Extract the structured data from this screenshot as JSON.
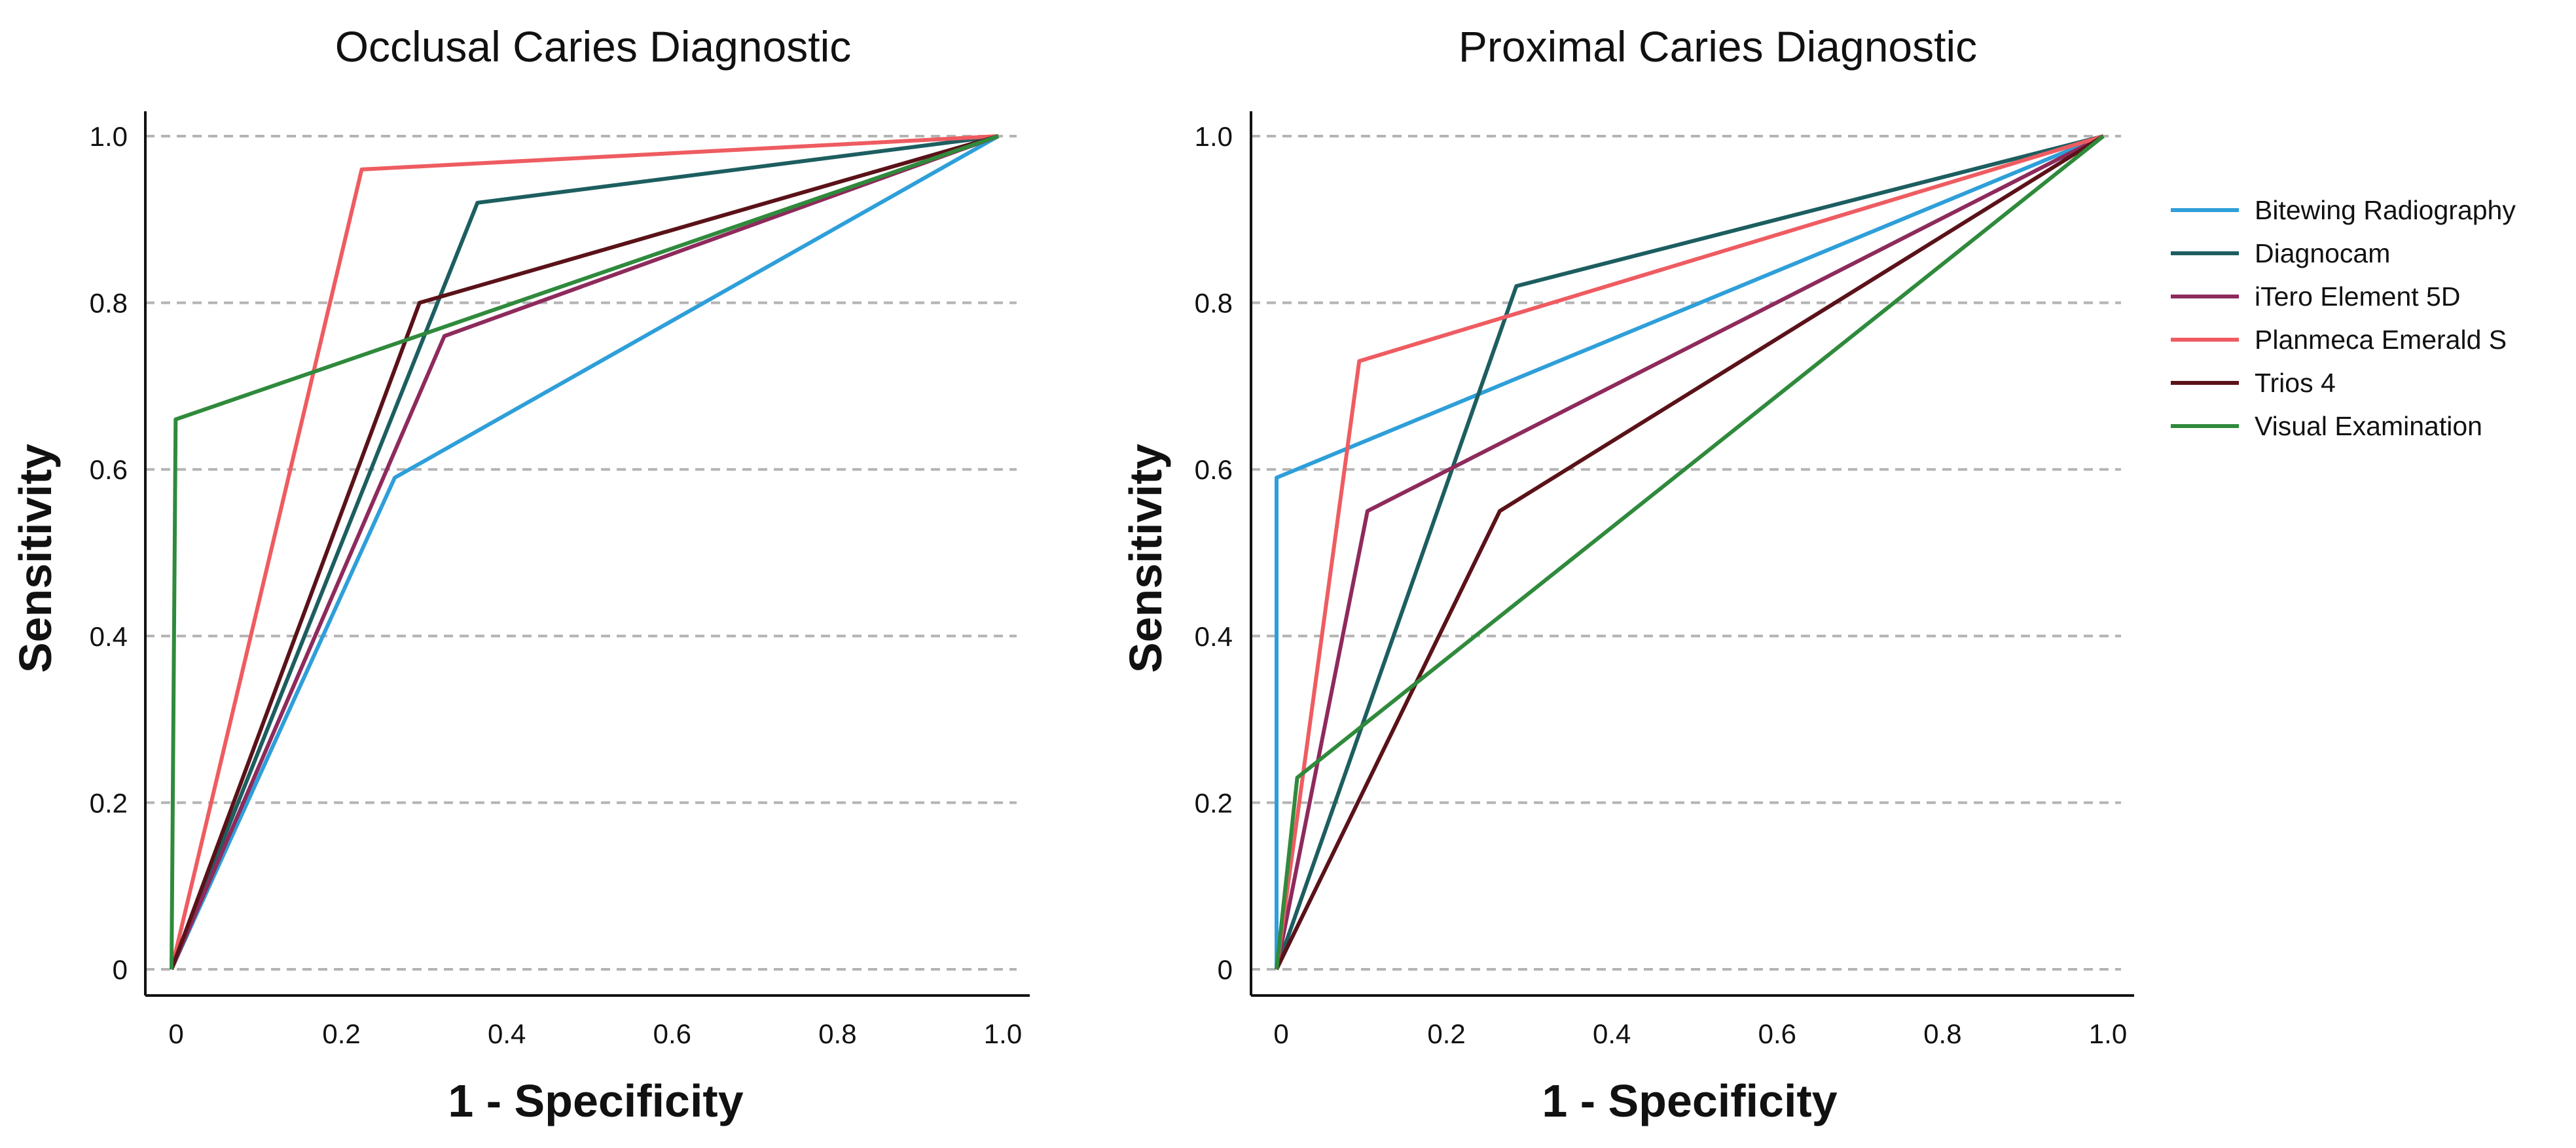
{
  "chart_data": [
    {
      "type": "line",
      "title": "Occlusal Caries Diagnostic",
      "xlabel": "1 - Specificity",
      "ylabel": "Sensitivity",
      "xlim": [
        0,
        1
      ],
      "ylim": [
        0,
        1
      ],
      "xticks": [
        "0",
        "0.2",
        "0.4",
        "0.6",
        "0.8",
        "1.0"
      ],
      "yticks": [
        "0",
        "0.2",
        "0.4",
        "0.6",
        "0.8",
        "1.0"
      ],
      "grid": "horizontal dashed",
      "series": [
        {
          "name": "Bitewing Radiography",
          "color": "#2e9fd9",
          "points": [
            [
              0,
              0
            ],
            [
              0.27,
              0.59
            ],
            [
              1,
              1
            ]
          ]
        },
        {
          "name": "Diagnocam",
          "color": "#1d5e60",
          "points": [
            [
              0,
              0
            ],
            [
              0.37,
              0.92
            ],
            [
              1,
              1
            ]
          ]
        },
        {
          "name": "iTero Element 5D",
          "color": "#8e2a5c",
          "points": [
            [
              0,
              0
            ],
            [
              0.33,
              0.76
            ],
            [
              1,
              1
            ]
          ]
        },
        {
          "name": "Planmeca Emerald S",
          "color": "#ee5c61",
          "points": [
            [
              0,
              0
            ],
            [
              0.23,
              0.96
            ],
            [
              1,
              1
            ]
          ]
        },
        {
          "name": "Trios 4",
          "color": "#5a1218",
          "points": [
            [
              0,
              0
            ],
            [
              0.3,
              0.8
            ],
            [
              1,
              1
            ]
          ]
        },
        {
          "name": "Visual Examination",
          "color": "#2f8a3c",
          "points": [
            [
              0,
              0
            ],
            [
              0.005,
              0.66
            ],
            [
              1,
              1
            ]
          ]
        }
      ]
    },
    {
      "type": "line",
      "title": "Proximal Caries Diagnostic",
      "xlabel": "1 - Specificity",
      "ylabel": "Sensitivity",
      "xlim": [
        0,
        1
      ],
      "ylim": [
        0,
        1
      ],
      "xticks": [
        "0",
        "0.2",
        "0.4",
        "0.6",
        "0.8",
        "1.0"
      ],
      "yticks": [
        "0",
        "0.2",
        "0.4",
        "0.6",
        "0.8",
        "1.0"
      ],
      "grid": "horizontal dashed",
      "legend": "right",
      "series": [
        {
          "name": "Bitewing Radiography",
          "color": "#2e9fd9",
          "points": [
            [
              0,
              0
            ],
            [
              0,
              0.59
            ],
            [
              1,
              1
            ]
          ]
        },
        {
          "name": "Diagnocam",
          "color": "#1d5e60",
          "points": [
            [
              0,
              0
            ],
            [
              0.29,
              0.82
            ],
            [
              1,
              1
            ]
          ]
        },
        {
          "name": "iTero Element 5D",
          "color": "#8e2a5c",
          "points": [
            [
              0,
              0
            ],
            [
              0.11,
              0.55
            ],
            [
              1,
              1
            ]
          ]
        },
        {
          "name": "Planmeca Emerald S",
          "color": "#ee5c61",
          "points": [
            [
              0,
              0
            ],
            [
              0.1,
              0.73
            ],
            [
              1,
              1
            ]
          ]
        },
        {
          "name": "Trios 4",
          "color": "#5a1218",
          "points": [
            [
              0,
              0
            ],
            [
              0.27,
              0.55
            ],
            [
              1,
              1
            ]
          ]
        },
        {
          "name": "Visual Examination",
          "color": "#2f8a3c",
          "points": [
            [
              0,
              0
            ],
            [
              0.025,
              0.23
            ],
            [
              1,
              1
            ]
          ]
        }
      ]
    }
  ]
}
